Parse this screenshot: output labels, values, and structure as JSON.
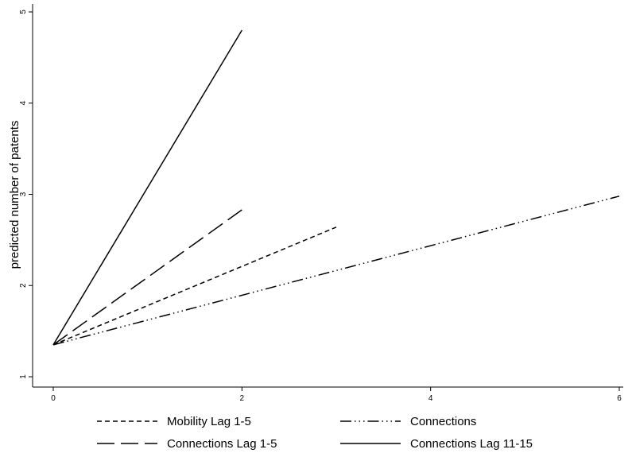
{
  "chart_data": {
    "type": "line",
    "title": "",
    "xlabel": "",
    "ylabel": "predicted number of patents",
    "xlim": [
      0,
      6
    ],
    "ylim": [
      1,
      5
    ],
    "xticks": [
      0,
      2,
      4,
      6
    ],
    "yticks": [
      1,
      2,
      3,
      4,
      5
    ],
    "grid": false,
    "legend_position": "bottom",
    "series": [
      {
        "name": "Mobility Lag 1-5",
        "style": "short-dash",
        "color": "#000000",
        "x": [
          0,
          3
        ],
        "y": [
          1.35,
          2.64
        ]
      },
      {
        "name": "Connections",
        "style": "dash-dot-dot-dot",
        "color": "#000000",
        "x": [
          0,
          6
        ],
        "y": [
          1.35,
          2.98
        ]
      },
      {
        "name": "Connections Lag 1-5",
        "style": "long-dash",
        "color": "#000000",
        "x": [
          0,
          2
        ],
        "y": [
          1.35,
          2.83
        ]
      },
      {
        "name": "Connections Lag 11-15",
        "style": "solid",
        "color": "#000000",
        "x": [
          0,
          2
        ],
        "y": [
          1.35,
          4.8
        ]
      }
    ]
  }
}
